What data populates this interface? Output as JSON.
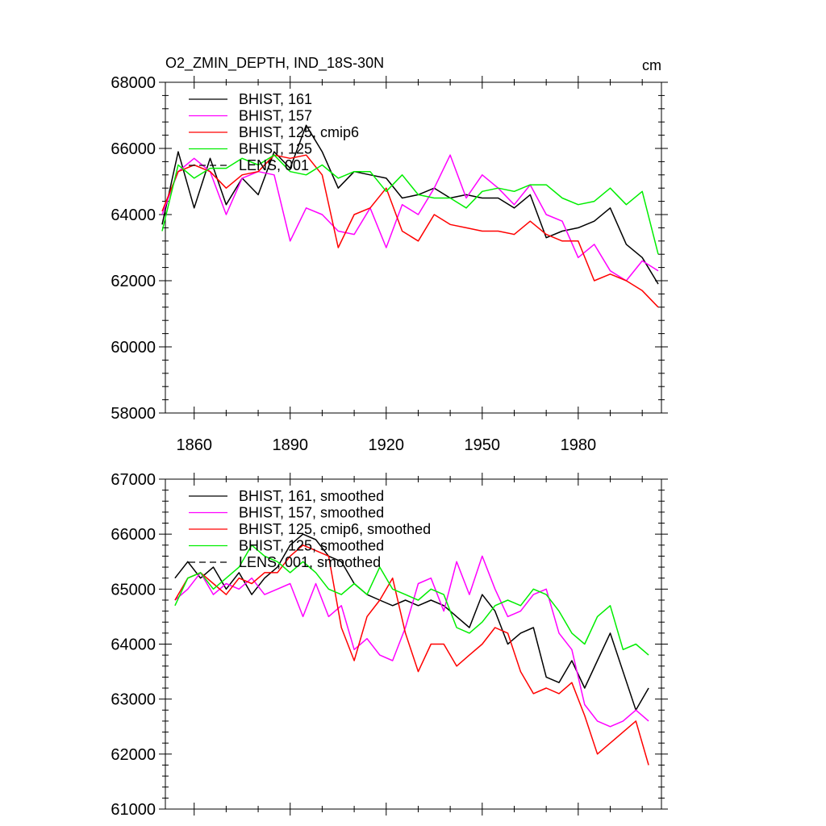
{
  "chart_data": [
    {
      "type": "line",
      "title": "O2_ZMIN_DEPTH, IND_18S-30N",
      "units": "cm",
      "xlabel": "",
      "ylabel": "",
      "xlim": [
        1851,
        2006
      ],
      "ylim": [
        58000,
        68000
      ],
      "x_ticks": [
        1860,
        1890,
        1920,
        1950,
        1980
      ],
      "x_tick_labels": [
        "1860",
        "1890",
        "1920",
        "1950",
        "1980"
      ],
      "y_ticks": [
        58000,
        60000,
        62000,
        64000,
        66000,
        68000
      ],
      "y_tick_labels": [
        "58000",
        "60000",
        "62000",
        "64000",
        "66000",
        "68000"
      ],
      "legend_position": "top-left",
      "x": [
        1850,
        1855,
        1860,
        1865,
        1870,
        1875,
        1880,
        1885,
        1890,
        1895,
        1900,
        1905,
        1910,
        1915,
        1920,
        1925,
        1930,
        1935,
        1940,
        1945,
        1950,
        1955,
        1960,
        1965,
        1970,
        1975,
        1980,
        1985,
        1990,
        1995,
        2000,
        2005
      ],
      "series": [
        {
          "name": "BHIST, 161",
          "color": "#000000",
          "dash": "solid",
          "values": [
            63700,
            65900,
            64200,
            65700,
            64300,
            65100,
            64600,
            65900,
            65400,
            66700,
            65900,
            64800,
            65300,
            65200,
            65100,
            64500,
            64600,
            64800,
            64500,
            64600,
            64500,
            64500,
            64200,
            64600,
            63300,
            63500,
            63600,
            63800,
            64200,
            63100,
            62700,
            61900
          ]
        },
        {
          "name": "BHIST, 157",
          "color": "#ff00ff",
          "dash": "solid",
          "values": [
            64000,
            65300,
            65700,
            65300,
            64000,
            65100,
            65300,
            65200,
            63200,
            64200,
            64000,
            63500,
            63400,
            64200,
            63000,
            64300,
            64000,
            64800,
            65800,
            64500,
            65200,
            64800,
            64300,
            64900,
            64000,
            63800,
            62700,
            63100,
            62300,
            62000,
            62600,
            62300
          ]
        },
        {
          "name": "BHIST, 125, cmip6",
          "color": "#ff0000",
          "dash": "solid",
          "values": [
            64100,
            65300,
            65500,
            65300,
            64800,
            65200,
            65300,
            65800,
            65700,
            65800,
            65200,
            63000,
            64000,
            64200,
            64800,
            63500,
            63200,
            64000,
            63700,
            63600,
            63500,
            63500,
            63400,
            63800,
            63400,
            63200,
            63200,
            62000,
            62200,
            62000,
            61700,
            61200
          ]
        },
        {
          "name": "BHIST, 125",
          "color": "#00ee00",
          "dash": "solid",
          "values": [
            63500,
            65500,
            65100,
            65400,
            65400,
            65700,
            65500,
            65800,
            65300,
            65200,
            65500,
            65100,
            65300,
            65300,
            64700,
            65200,
            64600,
            64500,
            64500,
            64200,
            64700,
            64800,
            64700,
            64900,
            64900,
            64500,
            64300,
            64400,
            64800,
            64300,
            64700,
            62800
          ]
        }
      ]
    },
    {
      "type": "line",
      "title": "",
      "xlabel": "",
      "ylabel": "",
      "xlim": [
        1851,
        2006
      ],
      "ylim": [
        61000,
        67000
      ],
      "x_ticks": [
        1860,
        1890,
        1920,
        1950,
        1980
      ],
      "x_tick_labels": [],
      "y_ticks": [
        61000,
        62000,
        63000,
        64000,
        65000,
        66000,
        67000
      ],
      "y_tick_labels": [
        "61000",
        "62000",
        "63000",
        "64000",
        "65000",
        "66000",
        "67000"
      ],
      "legend_position": "top-left",
      "x": [
        1854,
        1858,
        1862,
        1866,
        1870,
        1874,
        1878,
        1882,
        1886,
        1890,
        1894,
        1898,
        1902,
        1906,
        1910,
        1914,
        1918,
        1922,
        1926,
        1930,
        1934,
        1938,
        1942,
        1946,
        1950,
        1954,
        1958,
        1962,
        1966,
        1970,
        1974,
        1978,
        1982,
        1986,
        1990,
        1994,
        1998,
        2002
      ],
      "series": [
        {
          "name": "BHIST, 161, smoothed",
          "color": "#000000",
          "dash": "solid",
          "values": [
            65200,
            65500,
            65200,
            65400,
            65000,
            65300,
            64900,
            65200,
            65400,
            65800,
            66000,
            65900,
            65600,
            65500,
            65100,
            64900,
            64800,
            64700,
            64800,
            64700,
            64800,
            64700,
            64500,
            64300,
            64900,
            64600,
            64000,
            64200,
            64300,
            63400,
            63300,
            63700,
            63200,
            63700,
            64200,
            63500,
            62800,
            63200
          ]
        },
        {
          "name": "BHIST, 157, smoothed",
          "color": "#ff00ff",
          "dash": "solid",
          "values": [
            64800,
            65000,
            65300,
            64900,
            65100,
            65000,
            65200,
            64900,
            65000,
            65100,
            64500,
            65100,
            64500,
            64700,
            63900,
            64100,
            63800,
            63700,
            64300,
            65100,
            65200,
            64600,
            65500,
            64900,
            65600,
            65000,
            64500,
            64600,
            64900,
            65000,
            64200,
            63900,
            62900,
            62600,
            62500,
            62600,
            62800,
            62600
          ]
        },
        {
          "name": "BHIST, 125, cmip6, smoothed",
          "color": "#ff0000",
          "dash": "solid",
          "values": [
            64800,
            65200,
            65300,
            65100,
            64900,
            65200,
            65100,
            65300,
            65300,
            65600,
            65800,
            65700,
            65600,
            64300,
            63700,
            64500,
            64800,
            65200,
            64200,
            63500,
            64000,
            64000,
            63600,
            63800,
            64000,
            64300,
            64200,
            63500,
            63100,
            63200,
            63100,
            63300,
            62700,
            62000,
            62200,
            62400,
            62600,
            61800
          ]
        },
        {
          "name": "BHIST, 125, smoothed",
          "color": "#00ee00",
          "dash": "solid",
          "values": [
            64700,
            65200,
            65300,
            65000,
            65200,
            65400,
            65800,
            65600,
            65500,
            65300,
            65500,
            65300,
            65000,
            64900,
            65100,
            64900,
            65400,
            65000,
            64900,
            64800,
            65000,
            64900,
            64300,
            64200,
            64400,
            64700,
            64800,
            64700,
            65000,
            64900,
            64600,
            64200,
            64000,
            64500,
            64700,
            63900,
            64000,
            63800
          ]
        }
      ]
    }
  ],
  "legend_extra": {
    "name": "LENS, 001",
    "color": "#000000",
    "dash": "dashed"
  },
  "legend_extra_smoothed": {
    "name": "LENS, 001, smoothed",
    "color": "#000000",
    "dash": "dashed"
  }
}
